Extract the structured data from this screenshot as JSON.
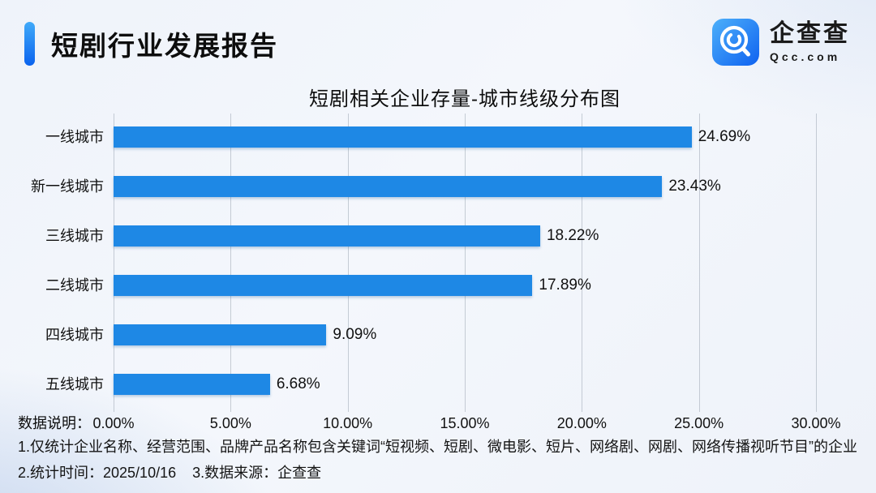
{
  "header": {
    "report_title": "短剧行业发展报告",
    "accent_color": "#0b63ee",
    "logo": {
      "name": "企查查",
      "domain": "Qcc.com",
      "icon_color": "#1e7bf4"
    }
  },
  "chart_data": {
    "type": "bar",
    "orientation": "horizontal",
    "title": "短剧相关企业存量-城市线级分布图",
    "categories": [
      "一线城市",
      "新一线城市",
      "三线城市",
      "二线城市",
      "四线城市",
      "五线城市"
    ],
    "values": [
      24.69,
      23.43,
      18.22,
      17.89,
      9.09,
      6.68
    ],
    "value_labels": [
      "24.69%",
      "23.43%",
      "18.22%",
      "17.89%",
      "9.09%",
      "6.68%"
    ],
    "x_ticks": [
      "0.00%",
      "5.00%",
      "10.00%",
      "15.00%",
      "20.00%",
      "25.00%",
      "30.00%"
    ],
    "xlim": [
      0,
      30
    ],
    "bar_color": "#1e88e5",
    "grid": true,
    "legend": false
  },
  "footer": {
    "label": "数据说明：",
    "notes": [
      "1.仅统计企业名称、经营范围、品牌产品名称包含关键词“短视频、短剧、微电影、短片、网络剧、网剧、网络传播视听节目”的企业",
      "2.统计时间：2025/10/16    3.数据来源：企查查"
    ]
  }
}
